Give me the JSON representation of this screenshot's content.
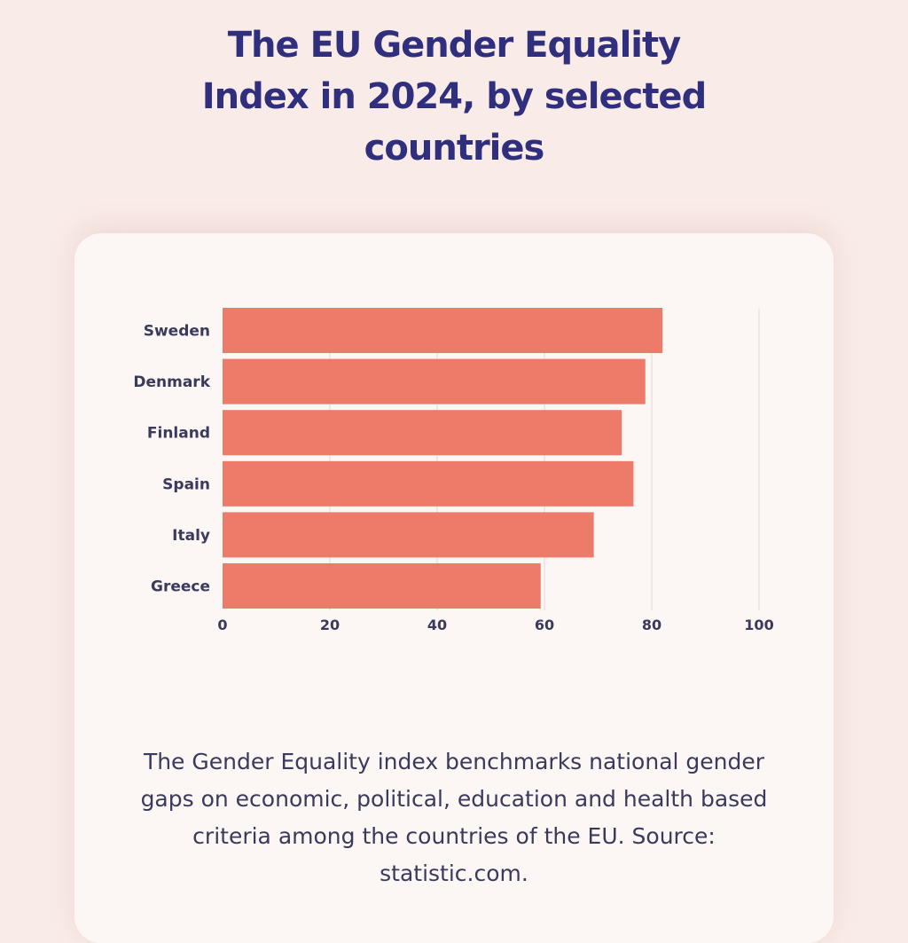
{
  "title": "The EU Gender Equality Index in 2024, by selected countries",
  "caption": "The Gender Equality index benchmarks national gender gaps on economic, political, education and health based criteria among the countries of the EU. Source: statistic.com.",
  "colors": {
    "background": "#f9ebe7",
    "card": "#fcf6f4",
    "title": "#2f2f7d",
    "bar": "#ec7b69",
    "text": "#3a3a5c",
    "grid": "#ece1dd"
  },
  "chart_data": {
    "type": "bar",
    "orientation": "horizontal",
    "categories": [
      "Sweden",
      "Denmark",
      "Finland",
      "Spain",
      "Italy",
      "Greece"
    ],
    "values": [
      82,
      78.8,
      74.4,
      76.6,
      69.2,
      59.3
    ],
    "xlim": [
      0,
      100
    ],
    "xticks": [
      0,
      20,
      40,
      60,
      80,
      100
    ],
    "grid": true
  }
}
